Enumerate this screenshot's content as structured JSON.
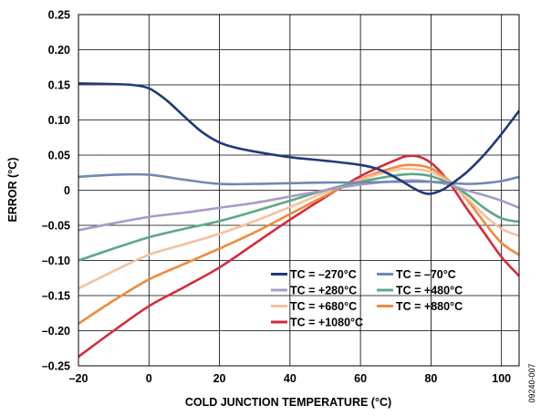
{
  "chart_data": {
    "type": "line",
    "title": "",
    "xlabel": "COLD JUNCTION TEMPERATURE (°C)",
    "ylabel": "ERROR (°C)",
    "xlim": [
      -20,
      105
    ],
    "ylim": [
      -0.25,
      0.25
    ],
    "grid": true,
    "legend_position": "bottom-right",
    "x_ticks": [
      -20,
      0,
      20,
      40,
      60,
      80,
      100
    ],
    "x_tick_labels": [
      "–20",
      "0",
      "20",
      "40",
      "60",
      "80",
      "100"
    ],
    "y_ticks": [
      0.25,
      0.2,
      0.15,
      0.1,
      0.05,
      0,
      -0.05,
      -0.1,
      -0.15,
      -0.2,
      -0.25
    ],
    "y_tick_labels": [
      "0.25",
      "0.20",
      "0.15",
      "0.10",
      "0.05",
      "0",
      "–0.05",
      "–0.10",
      "–0.15",
      "–0.20",
      "–0.25"
    ],
    "series": [
      {
        "name": "TC = –270°C",
        "color": "#1f3a7a",
        "points": [
          [
            -20,
            0.152
          ],
          [
            -10,
            0.151
          ],
          [
            -5,
            0.15
          ],
          [
            0,
            0.145
          ],
          [
            5,
            0.128
          ],
          [
            10,
            0.105
          ],
          [
            15,
            0.083
          ],
          [
            20,
            0.068
          ],
          [
            25,
            0.06
          ],
          [
            30,
            0.055
          ],
          [
            40,
            0.047
          ],
          [
            50,
            0.042
          ],
          [
            60,
            0.036
          ],
          [
            65,
            0.03
          ],
          [
            70,
            0.018
          ],
          [
            75,
            0.003
          ],
          [
            78,
            -0.004
          ],
          [
            80,
            -0.005
          ],
          [
            83,
            0.0
          ],
          [
            85,
            0.006
          ],
          [
            90,
            0.025
          ],
          [
            95,
            0.05
          ],
          [
            100,
            0.08
          ],
          [
            105,
            0.113
          ]
        ]
      },
      {
        "name": "TC = –70°C",
        "color": "#6f89b3",
        "points": [
          [
            -20,
            0.019
          ],
          [
            -10,
            0.022
          ],
          [
            0,
            0.022
          ],
          [
            10,
            0.015
          ],
          [
            20,
            0.009
          ],
          [
            30,
            0.009
          ],
          [
            40,
            0.01
          ],
          [
            50,
            0.011
          ],
          [
            60,
            0.011
          ],
          [
            70,
            0.012
          ],
          [
            80,
            0.012
          ],
          [
            90,
            0.009
          ],
          [
            95,
            0.01
          ],
          [
            100,
            0.013
          ],
          [
            105,
            0.019
          ]
        ]
      },
      {
        "name": "TC = +280°C",
        "color": "#a99ac8",
        "points": [
          [
            -20,
            -0.057
          ],
          [
            -10,
            -0.047
          ],
          [
            0,
            -0.038
          ],
          [
            10,
            -0.032
          ],
          [
            20,
            -0.025
          ],
          [
            30,
            -0.018
          ],
          [
            40,
            -0.009
          ],
          [
            50,
            0.0
          ],
          [
            60,
            0.008
          ],
          [
            70,
            0.013
          ],
          [
            75,
            0.014
          ],
          [
            80,
            0.012
          ],
          [
            85,
            0.008
          ],
          [
            90,
            0.0
          ],
          [
            95,
            -0.007
          ],
          [
            100,
            -0.015
          ],
          [
            105,
            -0.025
          ]
        ]
      },
      {
        "name": "TC = +480°C",
        "color": "#5aaa84",
        "points": [
          [
            -20,
            -0.1
          ],
          [
            -10,
            -0.083
          ],
          [
            0,
            -0.067
          ],
          [
            10,
            -0.055
          ],
          [
            20,
            -0.044
          ],
          [
            30,
            -0.03
          ],
          [
            40,
            -0.015
          ],
          [
            50,
            0.0
          ],
          [
            60,
            0.012
          ],
          [
            70,
            0.021
          ],
          [
            75,
            0.023
          ],
          [
            80,
            0.02
          ],
          [
            85,
            0.01
          ],
          [
            90,
            -0.005
          ],
          [
            95,
            -0.025
          ],
          [
            100,
            -0.04
          ],
          [
            105,
            -0.045
          ]
        ]
      },
      {
        "name": "TC = +680°C",
        "color": "#f6c0a0",
        "points": [
          [
            -20,
            -0.14
          ],
          [
            -10,
            -0.115
          ],
          [
            0,
            -0.092
          ],
          [
            10,
            -0.077
          ],
          [
            20,
            -0.062
          ],
          [
            30,
            -0.044
          ],
          [
            40,
            -0.024
          ],
          [
            50,
            -0.003
          ],
          [
            60,
            0.015
          ],
          [
            70,
            0.029
          ],
          [
            75,
            0.03
          ],
          [
            80,
            0.026
          ],
          [
            85,
            0.012
          ],
          [
            90,
            -0.01
          ],
          [
            95,
            -0.035
          ],
          [
            100,
            -0.055
          ],
          [
            105,
            -0.065
          ]
        ]
      },
      {
        "name": "TC = +880°C",
        "color": "#f08a3c",
        "points": [
          [
            -20,
            -0.19
          ],
          [
            -10,
            -0.157
          ],
          [
            0,
            -0.127
          ],
          [
            10,
            -0.105
          ],
          [
            20,
            -0.083
          ],
          [
            30,
            -0.06
          ],
          [
            40,
            -0.034
          ],
          [
            50,
            -0.008
          ],
          [
            60,
            0.016
          ],
          [
            70,
            0.033
          ],
          [
            75,
            0.036
          ],
          [
            80,
            0.031
          ],
          [
            85,
            0.014
          ],
          [
            90,
            -0.012
          ],
          [
            95,
            -0.045
          ],
          [
            100,
            -0.075
          ],
          [
            105,
            -0.092
          ]
        ]
      },
      {
        "name": "TC = +1080°C",
        "color": "#d42a3c",
        "points": [
          [
            -20,
            -0.237
          ],
          [
            -10,
            -0.2
          ],
          [
            0,
            -0.165
          ],
          [
            10,
            -0.138
          ],
          [
            20,
            -0.11
          ],
          [
            30,
            -0.076
          ],
          [
            40,
            -0.042
          ],
          [
            50,
            -0.01
          ],
          [
            60,
            0.02
          ],
          [
            70,
            0.043
          ],
          [
            74,
            0.049
          ],
          [
            78,
            0.045
          ],
          [
            82,
            0.03
          ],
          [
            86,
            0.005
          ],
          [
            90,
            -0.025
          ],
          [
            95,
            -0.06
          ],
          [
            100,
            -0.095
          ],
          [
            105,
            -0.122
          ]
        ]
      }
    ]
  },
  "figure_code": "09240-007"
}
